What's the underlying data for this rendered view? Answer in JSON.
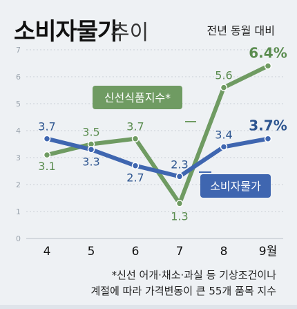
{
  "header": {
    "title": "소비자물가",
    "title_suffix": "추이",
    "subtitle": "전년 동월 대비"
  },
  "footnote": {
    "line1": "*신선 어개·채소·과실 등 기상조건이나",
    "line2": "계절에 따라 가격변동이 큰 55개 품목 지수"
  },
  "chart_data": {
    "type": "line",
    "x": [
      "4",
      "5",
      "6",
      "7",
      "8",
      "9월"
    ],
    "ylim": [
      0,
      7
    ],
    "yticks": [
      0,
      1,
      2,
      3,
      4,
      5,
      6,
      7
    ],
    "grid": true,
    "series": [
      {
        "name": "신선식품지수*",
        "color": "#6f9b62",
        "label_color": "#5a8c4f",
        "values": [
          3.1,
          3.5,
          3.7,
          1.3,
          5.6,
          6.4
        ],
        "labels": [
          "3.1",
          "3.5",
          "3.7",
          "1.3",
          "5.6",
          "6.4%"
        ]
      },
      {
        "name": "소비자물가",
        "color": "#3f66b0",
        "label_color": "#2d5590",
        "values": [
          3.7,
          3.3,
          2.7,
          2.3,
          3.4,
          3.7
        ],
        "labels": [
          "3.7",
          "3.3",
          "2.7",
          "2.3",
          "3.4",
          "3.7%"
        ]
      }
    ]
  }
}
